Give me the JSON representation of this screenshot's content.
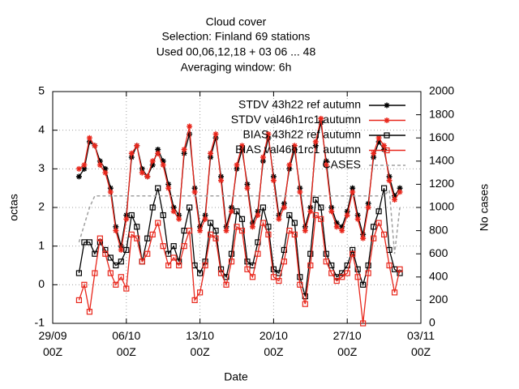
{
  "chart_data": {
    "type": "line",
    "title": [
      "Cloud cover",
      "Selection: Finland     69 stations",
      "Used  00,06,12,18  + 03 06 ... 48",
      "Averaging window:  6h"
    ],
    "xlabel": "Date",
    "ylabel": "octas",
    "y2label": "No cases",
    "xlim": [
      0,
      35
    ],
    "ylim": [
      -1,
      5
    ],
    "y2lim": [
      0,
      2000
    ],
    "xticks": [
      {
        "value": 0,
        "label": "29/09\n00Z"
      },
      {
        "value": 7,
        "label": "06/10\n00Z"
      },
      {
        "value": 14,
        "label": "13/10\n00Z"
      },
      {
        "value": 21,
        "label": "20/10\n00Z"
      },
      {
        "value": 28,
        "label": "27/10\n00Z"
      },
      {
        "value": 35,
        "label": "03/11\n00Z"
      }
    ],
    "yticks": [
      -1,
      0,
      1,
      2,
      3,
      4,
      5
    ],
    "y2ticks": [
      0,
      200,
      400,
      600,
      800,
      1000,
      1200,
      1400,
      1600,
      1800,
      2000
    ],
    "grid": true,
    "x": [
      2.5,
      3,
      3.5,
      4,
      4.5,
      5,
      5.5,
      6,
      6.5,
      7,
      7.5,
      8,
      8.5,
      9,
      9.5,
      10,
      10.5,
      11,
      11.5,
      12,
      12.5,
      13,
      13.5,
      14,
      14.5,
      15,
      15.5,
      16,
      16.5,
      17,
      17.5,
      18,
      18.5,
      19,
      19.5,
      20,
      20.5,
      21,
      21.5,
      22,
      22.5,
      23,
      23.5,
      24,
      24.5,
      25,
      25.5,
      26,
      26.5,
      27,
      27.5,
      28,
      28.5,
      29,
      29.5,
      30,
      30.5,
      31,
      31.5,
      32,
      32.5,
      33
    ],
    "series": [
      {
        "name": "STDV 43h22 ref autumn",
        "color": "#000000",
        "marker": "star",
        "values": [
          2.8,
          3.0,
          3.7,
          3.6,
          3.2,
          3.0,
          2.5,
          1.5,
          1.0,
          1.8,
          3.3,
          3.6,
          3.0,
          2.8,
          3.1,
          3.5,
          3.2,
          2.6,
          2.0,
          1.8,
          3.4,
          3.9,
          2.5,
          1.5,
          1.8,
          3.3,
          3.8,
          2.8,
          1.5,
          2.0,
          3.0,
          3.5,
          2.6,
          1.6,
          1.9,
          3.2,
          3.8,
          2.8,
          1.8,
          2.1,
          3.0,
          3.5,
          2.5,
          1.5,
          2.0,
          3.6,
          4.2,
          3.2,
          2.0,
          1.6,
          1.5,
          1.9,
          2.5,
          1.8,
          1.3,
          2.1,
          3.3,
          3.7,
          3.5,
          2.8,
          2.3,
          2.5
        ]
      },
      {
        "name": "STDV val46h1rc1 autumn",
        "color": "#e8261b",
        "marker": "star",
        "values": [
          3.0,
          3.1,
          3.8,
          3.6,
          3.1,
          2.9,
          2.4,
          1.4,
          0.9,
          1.7,
          3.4,
          3.6,
          2.9,
          2.8,
          3.2,
          3.4,
          3.1,
          2.5,
          1.9,
          1.7,
          3.5,
          4.1,
          2.4,
          1.4,
          1.7,
          3.4,
          3.9,
          2.7,
          1.4,
          1.9,
          3.1,
          3.6,
          2.5,
          1.5,
          1.8,
          3.3,
          3.9,
          2.7,
          1.7,
          2.0,
          3.1,
          3.6,
          2.4,
          1.4,
          1.9,
          3.7,
          4.3,
          3.1,
          1.9,
          1.5,
          1.4,
          1.8,
          2.4,
          1.7,
          1.2,
          2.0,
          3.4,
          3.8,
          3.6,
          2.7,
          2.2,
          2.4
        ]
      },
      {
        "name": "BIAS 43h22 ref autumn",
        "color": "#000000",
        "marker": "square",
        "values": [
          0.3,
          1.1,
          1.1,
          0.8,
          1.1,
          0.9,
          0.7,
          0.5,
          0.6,
          0.9,
          1.8,
          1.5,
          0.6,
          1.2,
          2.0,
          2.5,
          1.8,
          0.8,
          1.0,
          0.6,
          1.4,
          2.0,
          0.5,
          0.3,
          0.6,
          1.6,
          1.4,
          0.4,
          0.2,
          0.8,
          1.9,
          1.7,
          0.6,
          0.5,
          1.1,
          2.0,
          1.5,
          0.4,
          0.3,
          0.9,
          1.8,
          1.6,
          0.2,
          -0.3,
          0.8,
          2.2,
          2.0,
          0.8,
          0.5,
          0.2,
          0.3,
          0.5,
          0.9,
          0.4,
          0.0,
          0.5,
          1.5,
          1.9,
          2.5,
          0.9,
          0.4,
          0.3
        ]
      },
      {
        "name": "BIAS val46h1rc1 autumn",
        "color": "#e8261b",
        "marker": "square",
        "values": [
          -0.4,
          0.0,
          -0.7,
          0.3,
          1.2,
          0.8,
          0.3,
          0.0,
          0.2,
          -0.1,
          1.3,
          1.2,
          0.6,
          0.8,
          1.3,
          1.6,
          1.0,
          0.5,
          0.7,
          0.5,
          1.0,
          1.4,
          -0.4,
          -0.2,
          0.5,
          1.3,
          1.2,
          0.3,
          0.0,
          0.6,
          1.5,
          1.4,
          0.4,
          0.2,
          0.8,
          1.6,
          1.3,
          0.2,
          0.1,
          0.6,
          1.4,
          1.3,
          0.0,
          -0.5,
          0.5,
          1.8,
          1.7,
          0.6,
          0.3,
          0.1,
          0.2,
          0.3,
          0.8,
          0.2,
          -1.0,
          0.3,
          1.2,
          1.6,
          1.3,
          0.5,
          -0.2,
          0.4
        ]
      },
      {
        "name": "CASES",
        "color": "#a0a0a0",
        "marker": "none",
        "dashed": true,
        "axis": "y2",
        "values": [
          700,
          850,
          1000,
          1100,
          1100,
          1100,
          1100,
          1100,
          1100,
          1100,
          1100,
          1100,
          1100,
          1100,
          1100,
          1100,
          1100,
          1100,
          1100,
          1100,
          1100,
          1100,
          1100,
          1100,
          1100,
          1100,
          1100,
          1100,
          1100,
          1100,
          1100,
          1100,
          1100,
          1100,
          1100,
          1100,
          1100,
          1100,
          1100,
          1100,
          1100,
          1100,
          1100,
          1100,
          1100,
          1100,
          1100,
          1100,
          1100,
          1100,
          1100,
          1100,
          1100,
          1100,
          1100,
          1100,
          1100,
          1100,
          1100,
          1150,
          600,
          1000
        ]
      }
    ]
  }
}
